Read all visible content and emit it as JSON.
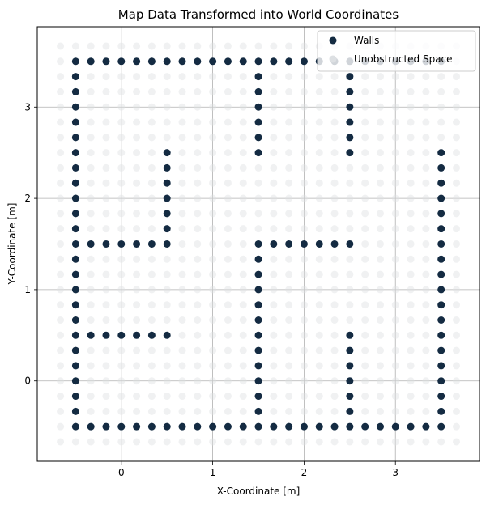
{
  "chart_data": {
    "type": "scatter",
    "title": "Map Data Transformed into World Coordinates",
    "xlabel": "X-Coordinate [m]",
    "ylabel": "Y-Coordinate [m]",
    "xlim": [
      -0.92,
      3.92
    ],
    "ylim": [
      -0.88,
      3.88
    ],
    "xticks": [
      0,
      1,
      2,
      3
    ],
    "yticks": [
      0,
      1,
      2,
      3
    ],
    "grid": true,
    "legend_position": "top-right",
    "grid_step": 0.1667,
    "grid_x_range": [
      -0.667,
      3.667
    ],
    "grid_y_range": [
      -0.667,
      3.667
    ],
    "series": [
      {
        "name": "Walls",
        "color": "#142b42",
        "segments": [
          {
            "from": [
              -0.5,
              3.5
            ],
            "to": [
              3.5,
              3.5
            ]
          },
          {
            "from": [
              -0.5,
              -0.5
            ],
            "to": [
              3.5,
              -0.5
            ]
          },
          {
            "from": [
              -0.5,
              -0.5
            ],
            "to": [
              -0.5,
              3.5
            ]
          },
          {
            "from": [
              3.5,
              -0.5
            ],
            "to": [
              3.5,
              2.5
            ]
          },
          {
            "from": [
              -0.333,
              1.5
            ],
            "to": [
              0.5,
              1.5
            ]
          },
          {
            "from": [
              0.5,
              1.5
            ],
            "to": [
              0.5,
              2.5
            ]
          },
          {
            "from": [
              -0.333,
              0.5
            ],
            "to": [
              0.5,
              0.5
            ]
          },
          {
            "from": [
              1.5,
              2.5
            ],
            "to": [
              1.5,
              3.5
            ]
          },
          {
            "from": [
              2.5,
              2.5
            ],
            "to": [
              2.5,
              3.5
            ]
          },
          {
            "from": [
              1.5,
              -0.5
            ],
            "to": [
              1.5,
              1.5
            ]
          },
          {
            "from": [
              1.667,
              1.5
            ],
            "to": [
              2.5,
              1.5
            ]
          },
          {
            "from": [
              2.5,
              -0.5
            ],
            "to": [
              2.5,
              0.5
            ]
          }
        ]
      },
      {
        "name": "Unobstructed Space",
        "color": "#dde0e3"
      }
    ]
  }
}
